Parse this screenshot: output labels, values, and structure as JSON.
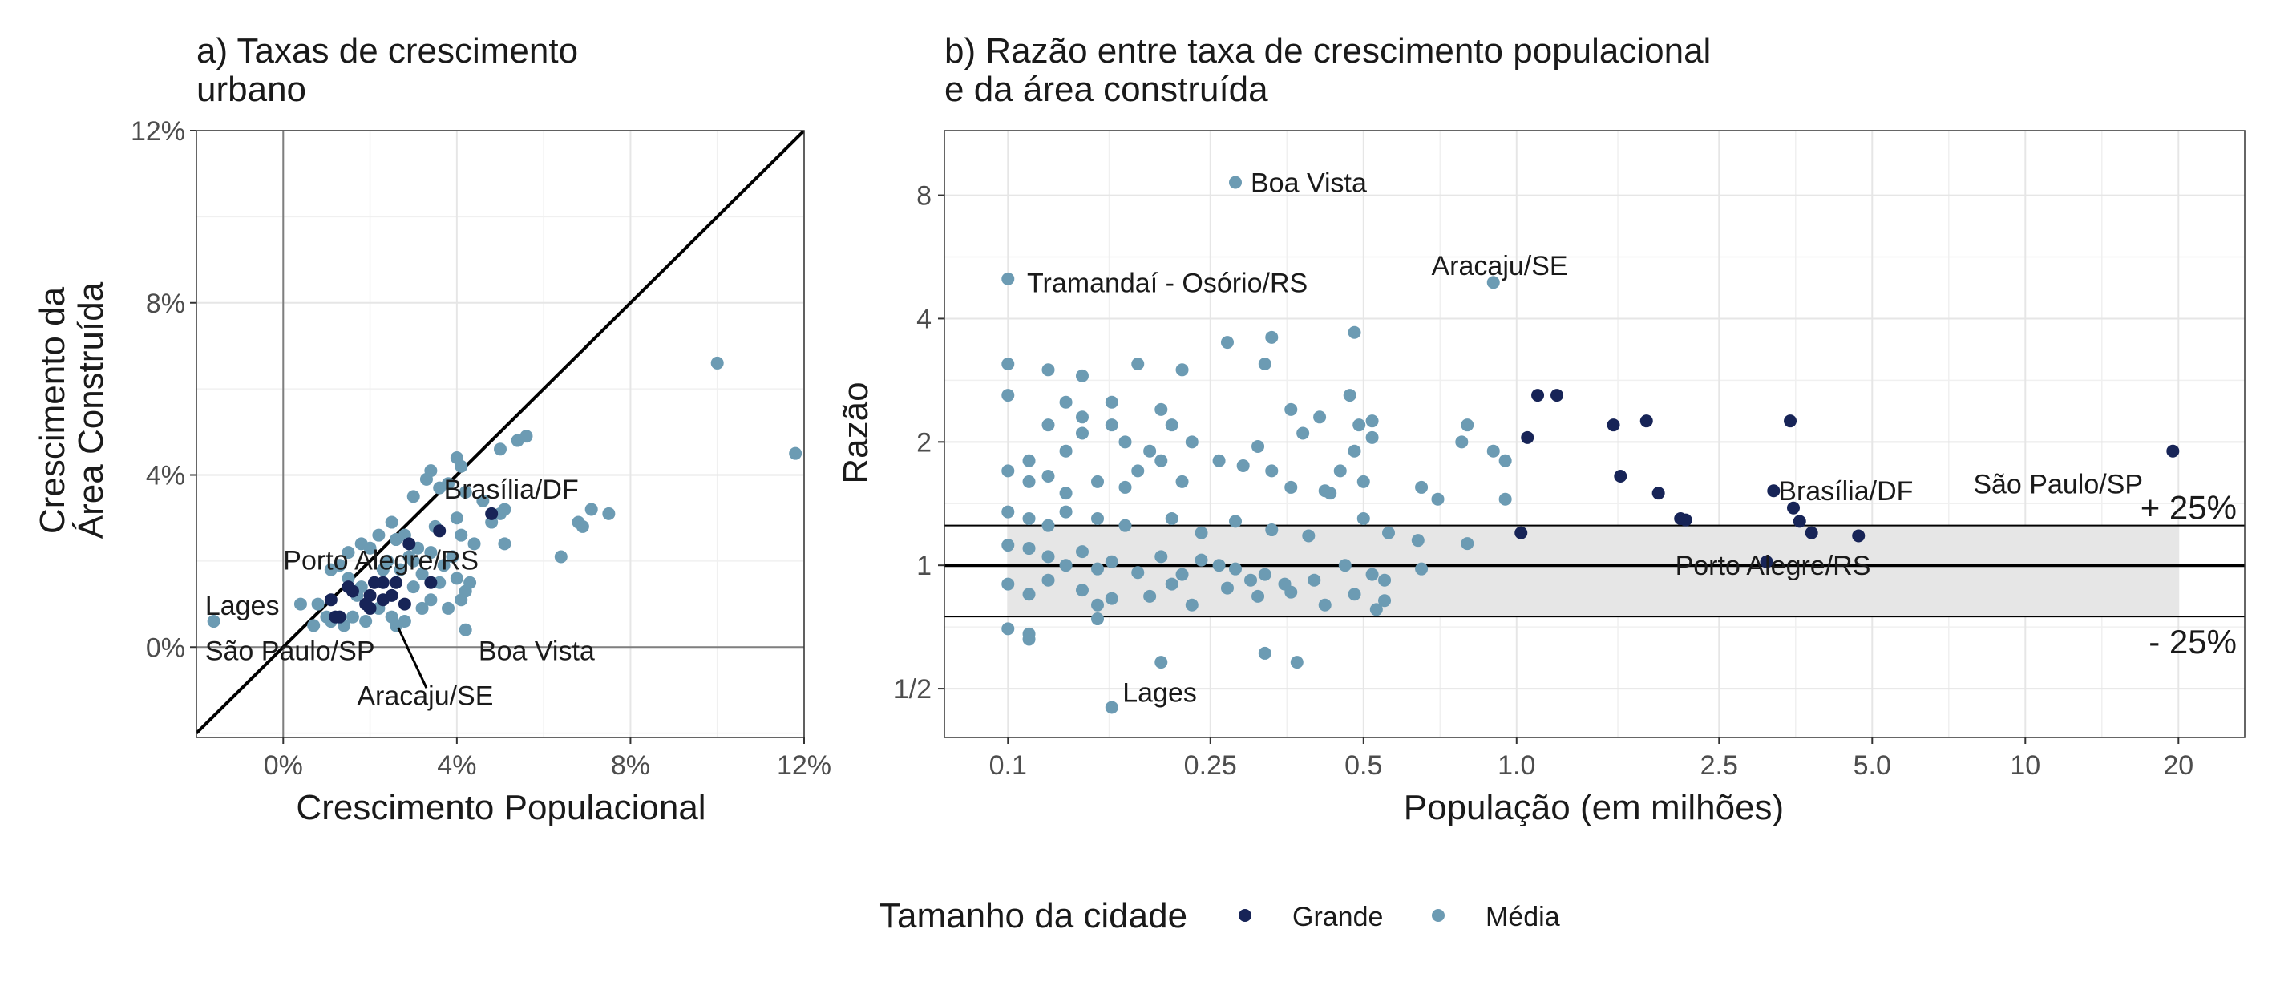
{
  "colors": {
    "grande": "#172457",
    "media": "#6c9bb3"
  },
  "legend": {
    "title": "Tamanho da cidade",
    "items": [
      {
        "label": "Grande",
        "color": "#172457"
      },
      {
        "label": "Média",
        "color": "#6c9bb3"
      }
    ]
  },
  "chart_data": [
    {
      "type": "scatter",
      "title_line1": "a) Taxas de crescimento",
      "title_line2": "urbano",
      "xlabel": "Crescimento Populacional",
      "ylabel_line1": "Crescimento da",
      "ylabel_line2": "Área Construída",
      "xlim": [
        -2.0,
        12.0
      ],
      "ylim": [
        -2.1,
        12.0
      ],
      "xticks": [
        0,
        4,
        8,
        12
      ],
      "xtick_labels": [
        "0%",
        "4%",
        "8%",
        "12%"
      ],
      "yticks": [
        0,
        4,
        8,
        12
      ],
      "ytick_labels": [
        "0%",
        "4%",
        "8%",
        "12%"
      ],
      "grid": true,
      "reference_line": "y = x",
      "series": [
        {
          "name": "Grande",
          "points": [
            [
              4.8,
              3.1
            ],
            [
              3.6,
              2.7
            ],
            [
              3.4,
              1.5
            ],
            [
              2.9,
              2.4
            ],
            [
              2.3,
              1.5
            ],
            [
              2.1,
              1.5
            ],
            [
              2.0,
              1.2
            ],
            [
              2.3,
              1.1
            ],
            [
              1.9,
              1.0
            ],
            [
              1.6,
              1.3
            ],
            [
              1.5,
              1.4
            ],
            [
              1.1,
              1.1
            ],
            [
              1.3,
              0.7
            ],
            [
              1.2,
              0.7
            ],
            [
              2.0,
              0.9
            ],
            [
              2.5,
              1.2
            ],
            [
              2.8,
              1.0
            ],
            [
              2.6,
              1.5
            ]
          ]
        },
        {
          "name": "Média",
          "points": [
            [
              10.0,
              6.6
            ],
            [
              11.8,
              4.5
            ],
            [
              5.6,
              4.9
            ],
            [
              5.4,
              4.8
            ],
            [
              5.0,
              4.6
            ],
            [
              4.1,
              4.2
            ],
            [
              4.0,
              4.4
            ],
            [
              3.8,
              3.8
            ],
            [
              3.4,
              4.1
            ],
            [
              3.0,
              3.5
            ],
            [
              3.3,
              3.9
            ],
            [
              3.6,
              3.7
            ],
            [
              4.2,
              3.6
            ],
            [
              4.6,
              3.4
            ],
            [
              5.0,
              3.1
            ],
            [
              5.1,
              3.2
            ],
            [
              4.8,
              2.9
            ],
            [
              7.1,
              3.2
            ],
            [
              7.5,
              3.1
            ],
            [
              6.8,
              2.9
            ],
            [
              6.9,
              2.8
            ],
            [
              6.4,
              2.1
            ],
            [
              5.1,
              2.4
            ],
            [
              4.4,
              2.4
            ],
            [
              4.1,
              2.6
            ],
            [
              3.9,
              2.1
            ],
            [
              3.7,
              1.9
            ],
            [
              3.4,
              2.2
            ],
            [
              3.1,
              2.3
            ],
            [
              2.8,
              2.6
            ],
            [
              2.5,
              2.9
            ],
            [
              2.6,
              2.5
            ],
            [
              2.2,
              2.6
            ],
            [
              2.0,
              2.3
            ],
            [
              1.8,
              2.4
            ],
            [
              1.5,
              2.2
            ],
            [
              1.3,
              1.9
            ],
            [
              1.1,
              1.8
            ],
            [
              1.5,
              1.6
            ],
            [
              1.8,
              1.4
            ],
            [
              2.4,
              2.0
            ],
            [
              2.7,
              1.8
            ],
            [
              3.0,
              2.0
            ],
            [
              3.2,
              1.7
            ],
            [
              3.6,
              1.5
            ],
            [
              4.0,
              1.6
            ],
            [
              4.2,
              1.3
            ],
            [
              4.3,
              1.5
            ],
            [
              4.1,
              1.1
            ],
            [
              3.8,
              0.9
            ],
            [
              3.4,
              1.1
            ],
            [
              3.2,
              0.9
            ],
            [
              2.8,
              0.6
            ],
            [
              2.5,
              0.7
            ],
            [
              2.2,
              0.9
            ],
            [
              1.9,
              0.6
            ],
            [
              1.6,
              0.7
            ],
            [
              1.4,
              0.5
            ],
            [
              1.1,
              0.6
            ],
            [
              0.8,
              1.0
            ],
            [
              0.4,
              1.0
            ],
            [
              0.7,
              0.5
            ],
            [
              1.0,
              0.7
            ],
            [
              4.2,
              0.4
            ],
            [
              2.6,
              0.5
            ],
            [
              -1.6,
              0.6
            ],
            [
              3.0,
              1.4
            ],
            [
              2.3,
              1.8
            ],
            [
              2.9,
              2.1
            ],
            [
              1.7,
              1.2
            ],
            [
              3.5,
              2.8
            ],
            [
              4.0,
              3.0
            ]
          ]
        }
      ],
      "annotations": [
        {
          "text": "Brasília/DF",
          "x": 3.7,
          "y": 3.45
        },
        {
          "text": "Porto Alegre/RS",
          "x": 0.0,
          "y": 1.8
        },
        {
          "text": "Lages",
          "x": -1.8,
          "y": 0.75
        },
        {
          "text": "São Paulo/SP",
          "x": -1.8,
          "y": -0.3
        },
        {
          "text": "Boa Vista",
          "x": 4.5,
          "y": -0.3
        },
        {
          "text": "Aracaju/SE",
          "x": 1.7,
          "y": -1.35
        }
      ]
    },
    {
      "type": "scatter",
      "title_line1": "b) Razão entre taxa de crescimento populacional",
      "title_line2": "e da área construída",
      "xlabel": "População (em milhões)",
      "ylabel": "Razão",
      "xscale": "log",
      "yscale": "log2",
      "xlim": [
        0.075,
        27
      ],
      "ylim": [
        0.38,
        11.5
      ],
      "xticks": [
        0.1,
        0.25,
        0.5,
        1.0,
        2.5,
        5.0,
        10,
        20
      ],
      "xtick_labels": [
        "0.1",
        "0.25",
        "0.5",
        "1.0",
        "2.5",
        "5.0",
        "10",
        "20"
      ],
      "yticks": [
        0.5,
        1,
        2,
        4,
        8
      ],
      "ytick_labels": [
        "1/2",
        "1",
        "2",
        "4",
        "8"
      ],
      "grid": true,
      "band": {
        "low": 0.75,
        "high": 1.25,
        "upper_label": "+ 25%",
        "lower_label": "- 25%"
      },
      "series": [
        {
          "name": "Grande",
          "points": [
            [
              1.1,
              2.6
            ],
            [
              1.2,
              2.6
            ],
            [
              1.05,
              2.05
            ],
            [
              1.55,
              2.2
            ],
            [
              1.6,
              1.65
            ],
            [
              1.8,
              2.25
            ],
            [
              1.9,
              1.5
            ],
            [
              2.1,
              1.3
            ],
            [
              2.15,
              1.29
            ],
            [
              3.45,
              2.25
            ],
            [
              3.2,
              1.52
            ],
            [
              3.5,
              1.38
            ],
            [
              3.6,
              1.28
            ],
            [
              3.8,
              1.2
            ],
            [
              4.7,
              1.18
            ],
            [
              1.02,
              1.2
            ],
            [
              3.1,
              1.02
            ],
            [
              19.5,
              1.9
            ]
          ]
        },
        {
          "name": "Média",
          "points": [
            [
              0.28,
              8.6
            ],
            [
              0.1,
              5.0
            ],
            [
              0.9,
              4.9
            ],
            [
              0.1,
              3.1
            ],
            [
              0.12,
              3.0
            ],
            [
              0.14,
              2.9
            ],
            [
              0.18,
              3.1
            ],
            [
              0.22,
              3.0
            ],
            [
              0.27,
              3.5
            ],
            [
              0.32,
              3.1
            ],
            [
              0.33,
              3.6
            ],
            [
              0.48,
              3.7
            ],
            [
              0.1,
              2.6
            ],
            [
              0.13,
              2.5
            ],
            [
              0.14,
              2.3
            ],
            [
              0.16,
              2.5
            ],
            [
              0.2,
              2.4
            ],
            [
              0.21,
              2.2
            ],
            [
              0.36,
              2.4
            ],
            [
              0.41,
              2.3
            ],
            [
              0.47,
              2.6
            ],
            [
              0.49,
              2.2
            ],
            [
              0.52,
              2.05
            ],
            [
              0.52,
              2.25
            ],
            [
              0.12,
              2.2
            ],
            [
              0.11,
              1.8
            ],
            [
              0.13,
              1.9
            ],
            [
              0.14,
              2.1
            ],
            [
              0.16,
              2.2
            ],
            [
              0.17,
              2.0
            ],
            [
              0.19,
              1.9
            ],
            [
              0.23,
              2.0
            ],
            [
              0.26,
              1.8
            ],
            [
              0.31,
              1.95
            ],
            [
              0.33,
              1.7
            ],
            [
              0.38,
              2.1
            ],
            [
              0.45,
              1.7
            ],
            [
              0.48,
              1.9
            ],
            [
              0.78,
              2.0
            ],
            [
              0.8,
              2.2
            ],
            [
              0.9,
              1.9
            ],
            [
              0.95,
              1.8
            ],
            [
              0.1,
              1.7
            ],
            [
              0.11,
              1.6
            ],
            [
              0.12,
              1.65
            ],
            [
              0.13,
              1.5
            ],
            [
              0.15,
              1.6
            ],
            [
              0.17,
              1.55
            ],
            [
              0.18,
              1.7
            ],
            [
              0.2,
              1.8
            ],
            [
              0.22,
              1.6
            ],
            [
              0.29,
              1.75
            ],
            [
              0.36,
              1.55
            ],
            [
              0.42,
              1.52
            ],
            [
              0.43,
              1.5
            ],
            [
              0.5,
              1.6
            ],
            [
              0.65,
              1.55
            ],
            [
              0.7,
              1.45
            ],
            [
              0.95,
              1.45
            ],
            [
              0.1,
              1.35
            ],
            [
              0.11,
              1.3
            ],
            [
              0.12,
              1.25
            ],
            [
              0.13,
              1.35
            ],
            [
              0.15,
              1.3
            ],
            [
              0.17,
              1.25
            ],
            [
              0.21,
              1.3
            ],
            [
              0.24,
              1.2
            ],
            [
              0.28,
              1.28
            ],
            [
              0.33,
              1.22
            ],
            [
              0.39,
              1.18
            ],
            [
              0.5,
              1.3
            ],
            [
              0.56,
              1.2
            ],
            [
              0.64,
              1.15
            ],
            [
              0.8,
              1.13
            ],
            [
              0.1,
              1.12
            ],
            [
              0.11,
              1.1
            ],
            [
              0.12,
              1.05
            ],
            [
              0.13,
              1.0
            ],
            [
              0.14,
              1.08
            ],
            [
              0.15,
              0.98
            ],
            [
              0.16,
              1.02
            ],
            [
              0.18,
              0.96
            ],
            [
              0.2,
              1.05
            ],
            [
              0.22,
              0.95
            ],
            [
              0.24,
              1.03
            ],
            [
              0.26,
              1.0
            ],
            [
              0.28,
              0.98
            ],
            [
              0.3,
              0.92
            ],
            [
              0.32,
              0.95
            ],
            [
              0.35,
              0.9
            ],
            [
              0.4,
              0.92
            ],
            [
              0.46,
              1.0
            ],
            [
              0.52,
              0.95
            ],
            [
              0.55,
              0.92
            ],
            [
              0.65,
              0.98
            ],
            [
              0.1,
              0.9
            ],
            [
              0.11,
              0.85
            ],
            [
              0.12,
              0.92
            ],
            [
              0.14,
              0.87
            ],
            [
              0.15,
              0.8
            ],
            [
              0.16,
              0.83
            ],
            [
              0.19,
              0.84
            ],
            [
              0.21,
              0.9
            ],
            [
              0.23,
              0.8
            ],
            [
              0.27,
              0.88
            ],
            [
              0.31,
              0.84
            ],
            [
              0.36,
              0.86
            ],
            [
              0.42,
              0.8
            ],
            [
              0.48,
              0.85
            ],
            [
              0.53,
              0.78
            ],
            [
              0.55,
              0.82
            ],
            [
              0.1,
              0.7
            ],
            [
              0.11,
              0.68
            ],
            [
              0.11,
              0.66
            ],
            [
              0.15,
              0.74
            ],
            [
              0.2,
              0.58
            ],
            [
              0.32,
              0.61
            ],
            [
              0.37,
              0.58
            ],
            [
              0.16,
              0.45
            ]
          ]
        }
      ],
      "annotations": [
        {
          "text": "Boa Vista",
          "x": 0.3,
          "y": 8.6
        },
        {
          "text": "Tramandaí - Osório/RS",
          "x": 0.109,
          "y": 4.9
        },
        {
          "text": "Aracaju/SE",
          "x": 0.68,
          "y": 5.4
        },
        {
          "text": "Brasília/DF",
          "x": 3.27,
          "y": 1.52
        },
        {
          "text": "São Paulo/SP",
          "x": 7.9,
          "y": 1.58
        },
        {
          "text": "Porto Alegre/RS",
          "x": 2.05,
          "y": 1.0
        },
        {
          "text": "Lages",
          "x": 0.168,
          "y": 0.49
        }
      ]
    }
  ]
}
